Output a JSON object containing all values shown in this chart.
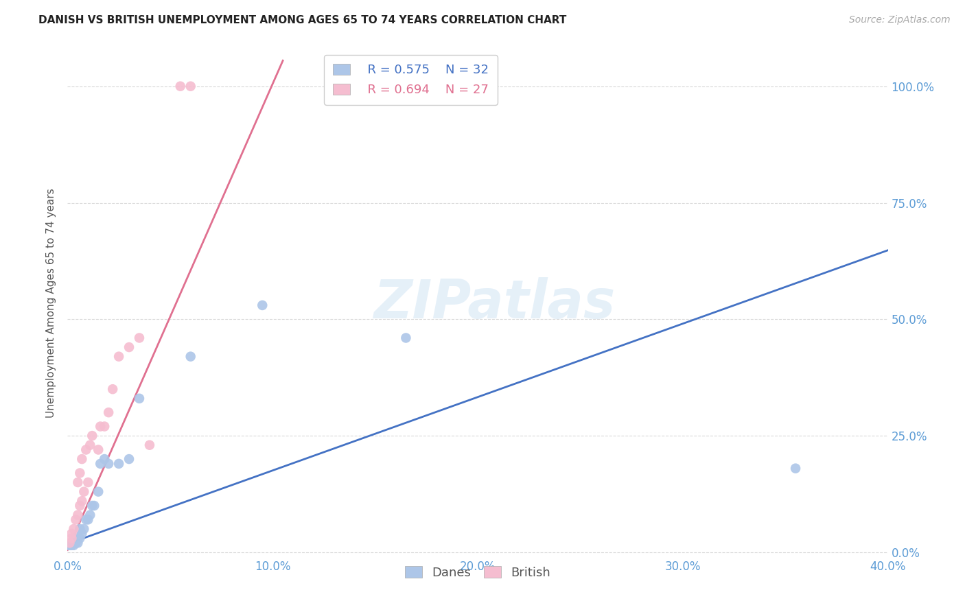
{
  "title": "DANISH VS BRITISH UNEMPLOYMENT AMONG AGES 65 TO 74 YEARS CORRELATION CHART",
  "source": "Source: ZipAtlas.com",
  "ylabel": "Unemployment Among Ages 65 to 74 years",
  "xlim": [
    0.0,
    0.4
  ],
  "ylim": [
    -0.01,
    1.08
  ],
  "danes_R": 0.575,
  "danes_N": 32,
  "british_R": 0.694,
  "british_N": 27,
  "danes_color": "#adc6e8",
  "british_color": "#f5bdd0",
  "danes_line_color": "#4472c4",
  "british_line_color": "#e07090",
  "tick_color": "#5b9bd5",
  "legend_danes_label": "Danes",
  "legend_british_label": "British",
  "watermark": "ZIPatlas",
  "xticks": [
    0.0,
    0.1,
    0.2,
    0.3,
    0.4
  ],
  "xtick_labels": [
    "0.0%",
    "10.0%",
    "20.0%",
    "30.0%",
    "40.0%"
  ],
  "yticks": [
    0.0,
    0.25,
    0.5,
    0.75,
    1.0
  ],
  "ytick_labels": [
    "0.0%",
    "25.0%",
    "50.0%",
    "75.0%",
    "100.0%"
  ],
  "danes_x": [
    0.0008,
    0.001,
    0.0012,
    0.0015,
    0.002,
    0.002,
    0.003,
    0.003,
    0.004,
    0.004,
    0.005,
    0.005,
    0.006,
    0.006,
    0.007,
    0.008,
    0.009,
    0.01,
    0.011,
    0.012,
    0.013,
    0.015,
    0.016,
    0.018,
    0.02,
    0.025,
    0.03,
    0.035,
    0.06,
    0.095,
    0.165,
    0.355
  ],
  "danes_y": [
    0.015,
    0.015,
    0.015,
    0.015,
    0.015,
    0.02,
    0.015,
    0.02,
    0.02,
    0.03,
    0.02,
    0.03,
    0.03,
    0.05,
    0.04,
    0.05,
    0.07,
    0.07,
    0.08,
    0.1,
    0.1,
    0.13,
    0.19,
    0.2,
    0.19,
    0.19,
    0.2,
    0.33,
    0.42,
    0.53,
    0.46,
    0.18
  ],
  "british_x": [
    0.001,
    0.002,
    0.002,
    0.003,
    0.004,
    0.005,
    0.005,
    0.006,
    0.006,
    0.007,
    0.007,
    0.008,
    0.009,
    0.01,
    0.011,
    0.012,
    0.015,
    0.016,
    0.018,
    0.02,
    0.022,
    0.025,
    0.03,
    0.035,
    0.04,
    0.055,
    0.06
  ],
  "british_y": [
    0.02,
    0.03,
    0.04,
    0.05,
    0.07,
    0.08,
    0.15,
    0.1,
    0.17,
    0.11,
    0.2,
    0.13,
    0.22,
    0.15,
    0.23,
    0.25,
    0.22,
    0.27,
    0.27,
    0.3,
    0.35,
    0.42,
    0.44,
    0.46,
    0.23,
    1.0,
    1.0
  ]
}
